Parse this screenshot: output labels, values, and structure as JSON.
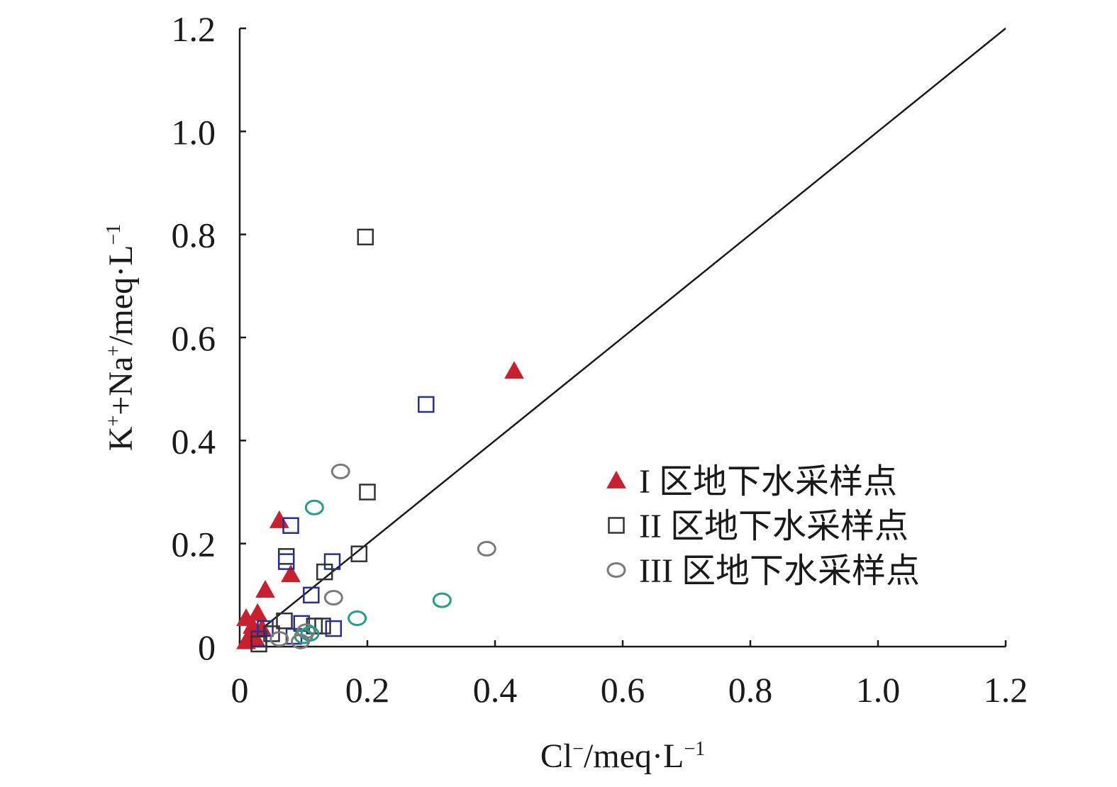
{
  "chart_data": {
    "type": "scatter",
    "title": "",
    "xlabel": "Cl⁻/meq·L⁻¹",
    "ylabel": "K⁺+Na⁺/meq·L⁻¹",
    "xlim": [
      0,
      1.2
    ],
    "ylim": [
      0,
      1.2
    ],
    "x_ticks": [
      "0",
      "0.2",
      "0.4",
      "0.6",
      "0.8",
      "1.0",
      "1.2"
    ],
    "y_ticks": [
      "0",
      "0.2",
      "0.4",
      "0.6",
      "0.8",
      "1.0",
      "1.2"
    ],
    "grid": false,
    "legend_position": "right-middle",
    "reference_line": {
      "from": [
        0,
        0
      ],
      "to": [
        1.2,
        1.2
      ],
      "color": "#1a1a1a"
    },
    "series": [
      {
        "name": "I 区地下水采样点",
        "marker": "triangle",
        "color": "#c8202e",
        "points": [
          [
            0.43,
            0.535
          ],
          [
            0.062,
            0.245
          ],
          [
            0.04,
            0.11
          ],
          [
            0.08,
            0.14
          ],
          [
            0.01,
            0.055
          ],
          [
            0.028,
            0.065
          ],
          [
            0.015,
            0.02
          ],
          [
            0.02,
            0.04
          ],
          [
            0.035,
            0.035
          ],
          [
            0.025,
            0.015
          ],
          [
            0.01,
            0.01
          ]
        ]
      },
      {
        "name": "II 区地下水采样点",
        "marker": "square",
        "colors": [
          "#333333",
          "#2a2f8a"
        ],
        "points": [
          [
            0.197,
            0.795
          ],
          [
            0.292,
            0.47
          ],
          [
            0.2,
            0.3
          ],
          [
            0.08,
            0.235
          ],
          [
            0.073,
            0.175
          ],
          [
            0.073,
            0.165
          ],
          [
            0.187,
            0.18
          ],
          [
            0.145,
            0.165
          ],
          [
            0.133,
            0.145
          ],
          [
            0.112,
            0.1
          ],
          [
            0.07,
            0.05
          ],
          [
            0.097,
            0.045
          ],
          [
            0.13,
            0.04
          ],
          [
            0.147,
            0.035
          ],
          [
            0.117,
            0.04
          ],
          [
            0.04,
            0.035
          ],
          [
            0.05,
            0.025
          ],
          [
            0.03,
            0.015
          ],
          [
            0.03,
            0.005
          ],
          [
            0.085,
            0.02
          ]
        ]
      },
      {
        "name": "III 区地下水采样点",
        "marker": "circle",
        "colors": [
          "#7a7a7a",
          "#2a9b84"
        ],
        "points": [
          [
            0.158,
            0.34
          ],
          [
            0.117,
            0.27
          ],
          [
            0.387,
            0.19
          ],
          [
            0.317,
            0.09
          ],
          [
            0.147,
            0.095
          ],
          [
            0.184,
            0.055
          ],
          [
            0.062,
            0.015
          ],
          [
            0.1,
            0.02
          ],
          [
            0.104,
            0.03
          ],
          [
            0.11,
            0.025
          ],
          [
            0.095,
            0.01
          ]
        ]
      }
    ]
  }
}
